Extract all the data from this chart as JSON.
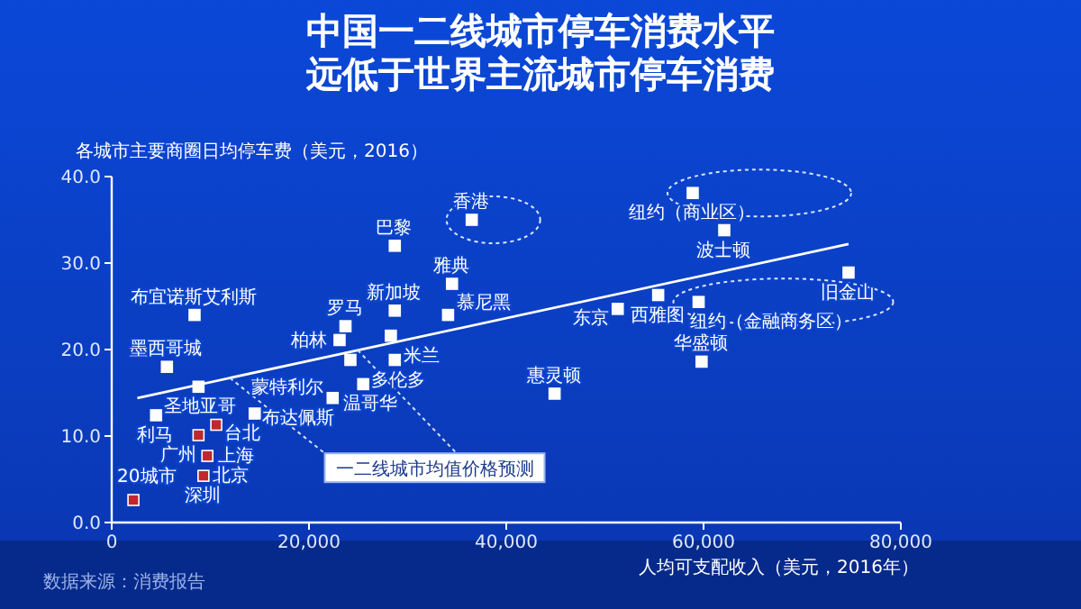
{
  "chart_data": {
    "type": "scatter",
    "title": "中国一二线城市停车消费水平",
    "subtitle": "远低于世界主流城市停车消费",
    "ylabel": "各城市主要商圈日均停车费（美元，2016）",
    "xlabel": "人均可支配收入（美元，2016年）",
    "xlim": [
      0,
      80000
    ],
    "xticks": [
      0,
      {
        "value": 20000,
        "label": "20,000"
      },
      {
        "value": 40000,
        "label": "40,000"
      },
      {
        "value": 60000,
        "label": "60,000"
      },
      {
        "value": 80000,
        "label": "80,000"
      }
    ],
    "ylim": [
      0,
      40
    ],
    "yticks": [
      {
        "value": 0,
        "label": "0.0"
      },
      {
        "value": 10,
        "label": "10.0"
      },
      {
        "value": 20,
        "label": "20.0"
      },
      {
        "value": 30,
        "label": "30.0"
      },
      {
        "value": 40,
        "label": "40.0"
      }
    ],
    "marker": "square",
    "grid": false,
    "series": [
      {
        "x": [
          28700,
          36500,
          58900,
          62100,
          74700,
          55400,
          59500,
          51300,
          59800,
          44900,
          34500,
          34100,
          28700,
          23700,
          23100,
          28300,
          28700,
          24200,
          25500,
          22400,
          8400,
          5600,
          8800,
          14500,
          4500,
          10600,
          8800,
          9700,
          9300,
          2200
        ],
        "values": [
          32.0,
          35.0,
          38.1,
          33.8,
          28.9,
          26.3,
          25.5,
          24.7,
          18.6,
          14.9,
          27.6,
          24.0,
          24.5,
          22.7,
          21.1,
          21.6,
          18.8,
          18.8,
          16.0,
          14.4,
          24.0,
          18.0,
          15.7,
          12.6,
          12.4,
          11.3,
          10.1,
          7.7,
          5.4,
          2.6
        ],
        "colors": [
          "#ffffff",
          "#ffffff",
          "#ffffff",
          "#ffffff",
          "#ffffff",
          "#ffffff",
          "#ffffff",
          "#ffffff",
          "#ffffff",
          "#ffffff",
          "#ffffff",
          "#ffffff",
          "#ffffff",
          "#ffffff",
          "#ffffff",
          "#ffffff",
          "#ffffff",
          "#ffffff",
          "#ffffff",
          "#ffffff",
          "#ffffff",
          "#ffffff",
          "#ffffff",
          "#ffffff",
          "#ffffff",
          "#c0282d",
          "#c0282d",
          "#c0282d",
          "#c0282d",
          "#c0282d"
        ]
      },
      {
        "type": "line",
        "marker": "none",
        "x": [
          2600,
          74700
        ],
        "values": [
          14.4,
          32.2
        ],
        "color": "#ffffff"
      }
    ],
    "annotations": [
      {
        "text": "巴黎",
        "x": 28700,
        "y": 32.0
      },
      {
        "text": "香港",
        "x": 36500,
        "y": 35.0
      },
      {
        "text": "纽约（商业区）",
        "x": 58900,
        "y": 38.1
      },
      {
        "text": "波士顿",
        "x": 62100,
        "y": 33.8
      },
      {
        "text": "旧金山",
        "x": 74700,
        "y": 28.9
      },
      {
        "text": "西雅图",
        "x": 55400,
        "y": 26.3
      },
      {
        "text": "纽约（金融商务区）",
        "x": 59500,
        "y": 25.5
      },
      {
        "text": "东京",
        "x": 51300,
        "y": 24.7
      },
      {
        "text": "华盛顿",
        "x": 59800,
        "y": 18.6
      },
      {
        "text": "惠灵顿",
        "x": 44900,
        "y": 14.9
      },
      {
        "text": "雅典",
        "x": 34500,
        "y": 27.6
      },
      {
        "text": "慕尼黑",
        "x": 34100,
        "y": 24.0
      },
      {
        "text": "新加坡",
        "x": 28700,
        "y": 24.5
      },
      {
        "text": "罗马",
        "x": 23700,
        "y": 22.7
      },
      {
        "text": "柏林",
        "x": 23100,
        "y": 21.1
      },
      {
        "text": "米兰",
        "x": 28300,
        "y": 21.6
      },
      {
        "text": "多伦多",
        "x": 28700,
        "y": 18.8
      },
      {
        "text": "蒙特利尔",
        "x": 24200,
        "y": 18.8
      },
      {
        "text": "温哥华",
        "x": 25500,
        "y": 16.0
      },
      {
        "text": "布达佩斯",
        "x": 22400,
        "y": 14.4
      },
      {
        "text": "布宜诺斯艾利斯",
        "x": 8400,
        "y": 24.0
      },
      {
        "text": "墨西哥城",
        "x": 5600,
        "y": 18.0
      },
      {
        "text": "圣地亚哥",
        "x": 8800,
        "y": 15.7
      },
      {
        "text": "台北",
        "x": 14500,
        "y": 12.6
      },
      {
        "text": "利马",
        "x": 4500,
        "y": 12.4
      },
      {
        "text": "上海",
        "x": 10600,
        "y": 11.3
      },
      {
        "text": "广州",
        "x": 8800,
        "y": 10.1
      },
      {
        "text": "北京",
        "x": 9700,
        "y": 7.7
      },
      {
        "text": "深圳",
        "x": 9300,
        "y": 5.4
      },
      {
        "text": "20城市",
        "x": 2200,
        "y": 2.6
      },
      {
        "text": "一二线城市均值价格预测",
        "x": 12000,
        "y": 16.7
      },
      "数据来源：消费报告"
    ]
  }
}
